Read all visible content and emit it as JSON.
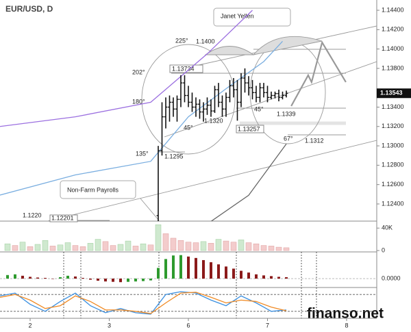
{
  "chart_data": {
    "type": "ohlc",
    "title": "EUR/USD, D",
    "xlim": [
      0,
      100
    ],
    "xticks": [
      {
        "value": 8,
        "label": "2"
      },
      {
        "value": 29,
        "label": "3"
      },
      {
        "value": 50,
        "label": "6"
      },
      {
        "value": 71,
        "label": "7"
      },
      {
        "value": 92,
        "label": "8"
      }
    ],
    "ylim": [
      1.12223,
      1.14506
    ],
    "yticks": [
      {
        "value": 1.124,
        "label": "1.12400"
      },
      {
        "value": 1.126,
        "label": "1.12600"
      },
      {
        "value": 1.128,
        "label": "1.12800"
      },
      {
        "value": 1.13,
        "label": "1.13000"
      },
      {
        "value": 1.132,
        "label": "1.13200"
      },
      {
        "value": 1.134,
        "label": "1.13400"
      },
      {
        "value": 1.138,
        "label": "1.13800"
      },
      {
        "value": 1.14,
        "label": "1.14000"
      },
      {
        "value": 1.142,
        "label": "1.14200"
      },
      {
        "value": 1.144,
        "label": "1.14400"
      }
    ],
    "last_price": 1.13543,
    "grid": false,
    "color": "#111111",
    "candles": {
      "x": [
        42,
        43,
        44,
        45,
        46,
        47,
        48,
        49,
        50,
        51,
        52,
        53,
        54,
        55,
        56,
        57,
        58,
        59,
        60,
        61,
        62,
        63,
        64,
        65,
        66,
        67,
        68,
        69,
        70,
        71,
        72,
        73,
        74,
        75,
        76
      ],
      "open": [
        1.1228,
        1.1295,
        1.133,
        1.134,
        1.1345,
        1.1338,
        1.1348,
        1.1365,
        1.1352,
        1.1345,
        1.134,
        1.1343,
        1.1335,
        1.1338,
        1.1342,
        1.1336,
        1.1358,
        1.1345,
        1.1338,
        1.135,
        1.1362,
        1.1358,
        1.1345,
        1.137,
        1.1365,
        1.136,
        1.1355,
        1.135,
        1.136,
        1.1355,
        1.135,
        1.1352,
        1.1354,
        1.135,
        1.1352
      ],
      "high": [
        1.13,
        1.1345,
        1.135,
        1.1352,
        1.135,
        1.1352,
        1.1373,
        1.1373,
        1.1362,
        1.1355,
        1.135,
        1.1348,
        1.1345,
        1.135,
        1.1348,
        1.1362,
        1.1365,
        1.1352,
        1.1355,
        1.1368,
        1.137,
        1.1368,
        1.1375,
        1.138,
        1.1372,
        1.1368,
        1.1362,
        1.1365,
        1.1365,
        1.1362,
        1.1356,
        1.1356,
        1.1358,
        1.1356,
        1.1357
      ],
      "low": [
        1.1205,
        1.129,
        1.1318,
        1.1325,
        1.133,
        1.1325,
        1.134,
        1.1345,
        1.134,
        1.1335,
        1.133,
        1.1328,
        1.1325,
        1.1332,
        1.133,
        1.1334,
        1.134,
        1.133,
        1.133,
        1.1345,
        1.135,
        1.1326,
        1.134,
        1.1355,
        1.1352,
        1.1348,
        1.1345,
        1.1345,
        1.135,
        1.1345,
        1.1348,
        1.1349,
        1.1346,
        1.1348,
        1.135
      ],
      "close": [
        1.1295,
        1.133,
        1.134,
        1.1345,
        1.1338,
        1.1348,
        1.1365,
        1.1352,
        1.1345,
        1.134,
        1.1343,
        1.1335,
        1.1338,
        1.1342,
        1.1336,
        1.1358,
        1.1345,
        1.1338,
        1.135,
        1.1362,
        1.1358,
        1.1345,
        1.137,
        1.1365,
        1.136,
        1.1355,
        1.135,
        1.136,
        1.1355,
        1.135,
        1.1352,
        1.1354,
        1.135,
        1.1352,
        1.13543
      ]
    },
    "lines": [
      {
        "color": "#9b6fe0",
        "x": [
          0,
          20,
          40,
          55,
          67
        ],
        "values": [
          1.132,
          1.133,
          1.1345,
          1.1395,
          1.144
        ]
      },
      {
        "color": "#7aaee0",
        "x": [
          0,
          20,
          40,
          50,
          60,
          70,
          75
        ],
        "values": [
          1.12492,
          1.127,
          1.1284,
          1.133,
          1.1359,
          1.1387,
          1.1408
        ]
      },
      {
        "color": "#666666",
        "x": [
          56,
          66,
          76
        ],
        "values": [
          1.1222,
          1.1249,
          1.1302
        ]
      },
      {
        "color": "#999999",
        "x": [
          77.3,
          81.8,
          82.7,
          85.5,
          91.8
        ],
        "values": [
          1.13411,
          1.13729,
          1.13658,
          1.14068,
          1.13658
        ]
      }
    ],
    "annotations": [
      "Janet Yellen",
      "Non-Farm Payrolls",
      "225°",
      "1.1400",
      "202°",
      "1.13734",
      "180°",
      "1.1320",
      "1.13257",
      "45°",
      "45°",
      "1.1339",
      "67°",
      "1.1312",
      "135°",
      "1.1295",
      "1.1220",
      "1.12201"
    ],
    "volume": {
      "ylim": [
        0,
        50000
      ],
      "yticks": [
        {
          "value": 0,
          "label": "0"
        },
        {
          "value": 40000,
          "label": "40K"
        }
      ],
      "x": [
        2,
        4,
        6,
        8,
        10,
        12,
        14,
        16,
        18,
        20,
        22,
        24,
        26,
        28,
        30,
        32,
        34,
        36,
        38,
        40,
        42,
        44,
        46,
        48,
        50,
        52,
        54,
        56,
        58,
        60,
        62,
        64,
        66,
        68,
        70,
        72,
        74,
        76
      ],
      "values": [
        12000,
        9000,
        15000,
        7000,
        11000,
        18000,
        8000,
        10000,
        14000,
        9000,
        7000,
        13000,
        20000,
        16000,
        9000,
        11000,
        17000,
        8000,
        12000,
        10000,
        46000,
        30000,
        22000,
        18000,
        15000,
        14000,
        16000,
        13000,
        20000,
        17000,
        15000,
        19000,
        14000,
        12000,
        9000,
        8000,
        6000,
        5000
      ]
    },
    "macd": {
      "ylim": [
        -0.0025,
        0.0075
      ],
      "yticks": [
        {
          "value": 0,
          "label": "0.0000"
        }
      ],
      "x": [
        2,
        4,
        6,
        8,
        10,
        12,
        14,
        16,
        18,
        20,
        22,
        24,
        26,
        28,
        30,
        32,
        34,
        36,
        38,
        40,
        42,
        44,
        46,
        48,
        50,
        52,
        54,
        56,
        58,
        60,
        62,
        64,
        66,
        68,
        70,
        72,
        74,
        76
      ],
      "values": [
        0.001,
        0.0012,
        0.0008,
        0.0005,
        0.0003,
        0.0002,
        -0.0001,
        0.0004,
        0.0008,
        0.0006,
        0.0002,
        -0.0003,
        -0.0006,
        -0.0008,
        -0.0009,
        -0.001,
        -0.0009,
        -0.0008,
        -0.0007,
        -0.0005,
        0.003,
        0.0055,
        0.0065,
        0.0066,
        0.0062,
        0.0058,
        0.0052,
        0.0046,
        0.004,
        0.0034,
        0.0028,
        0.0022,
        0.0017,
        0.0012,
        0.0009,
        0.0007,
        0.0005,
        0.0004
      ]
    },
    "stochastic": {
      "ylim": [
        0,
        100
      ],
      "levels": [
        80,
        20
      ],
      "x": [
        0,
        4,
        8,
        12,
        16,
        20,
        24,
        28,
        32,
        36,
        40,
        44,
        48,
        52,
        56,
        60,
        64,
        68,
        72,
        76
      ],
      "series": [
        {
          "color": "#3a8fe0",
          "values": [
            75,
            85,
            45,
            20,
            55,
            85,
            40,
            15,
            30,
            15,
            10,
            80,
            90,
            85,
            60,
            40,
            75,
            50,
            20,
            25
          ]
        },
        {
          "color": "#f08a24",
          "values": [
            70,
            80,
            60,
            30,
            40,
            75,
            55,
            25,
            25,
            20,
            12,
            50,
            85,
            88,
            70,
            50,
            60,
            55,
            35,
            22
          ]
        }
      ]
    },
    "watermark": "finanso.net"
  }
}
